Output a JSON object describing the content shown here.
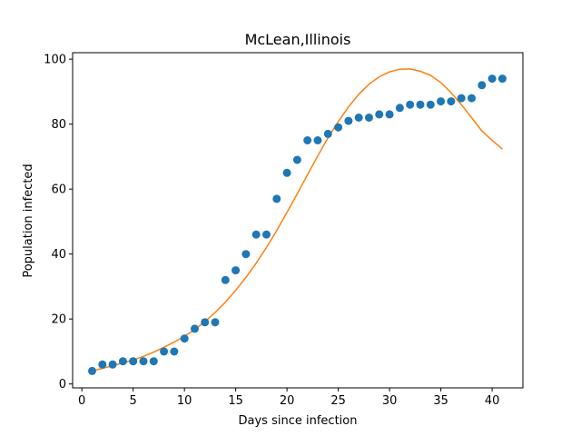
{
  "chart_data": {
    "type": "scatter",
    "title": "McLean,Illinois",
    "xlabel": "Days since infection",
    "ylabel": "Population infected",
    "xlim": [
      -0.9,
      43
    ],
    "ylim": [
      -1.2,
      102
    ],
    "xticks": [
      0,
      5,
      10,
      15,
      20,
      25,
      30,
      35,
      40
    ],
    "yticks": [
      0,
      20,
      40,
      60,
      80,
      100
    ],
    "grid": false,
    "legend": "none",
    "series": [
      {
        "kind": "scatter",
        "color": "#1f77b4",
        "x": [
          1,
          2,
          3,
          4,
          5,
          6,
          7,
          8,
          9,
          10,
          11,
          12,
          13,
          14,
          15,
          16,
          17,
          18,
          19,
          20,
          21,
          22,
          23,
          24,
          25,
          26,
          27,
          28,
          29,
          30,
          31,
          32,
          33,
          34,
          35,
          36,
          37,
          38,
          39,
          40,
          41
        ],
        "y": [
          4,
          6,
          6,
          7,
          7,
          7,
          7,
          10,
          10,
          14,
          17,
          19,
          19,
          32,
          35,
          40,
          46,
          46,
          57,
          65,
          69,
          75,
          75,
          77,
          79,
          81,
          82,
          82,
          83,
          83,
          85,
          86,
          86,
          86,
          87,
          87,
          88,
          88,
          92,
          94,
          94
        ]
      },
      {
        "kind": "line",
        "color": "#ff7f0e",
        "x": [
          1,
          2,
          3,
          4,
          5,
          6,
          7,
          8,
          9,
          10,
          11,
          12,
          13,
          14,
          15,
          16,
          17,
          18,
          19,
          20,
          21,
          22,
          23,
          24,
          25,
          26,
          27,
          28,
          29,
          30,
          31,
          32,
          33,
          34,
          35,
          36,
          37,
          38,
          39,
          40,
          41
        ],
        "y": [
          4,
          4.8,
          5.6,
          6.5,
          7.4,
          8.5,
          9.8,
          11.3,
          12.9,
          14.7,
          16.7,
          19.2,
          22,
          25.2,
          28.8,
          32.8,
          37.2,
          42,
          47.2,
          52.8,
          58.5,
          64.4,
          70.2,
          75.8,
          80.8,
          85.3,
          89.2,
          92.3,
          94.6,
          96.1,
          96.9,
          97,
          96.3,
          95,
          92.8,
          89.7,
          86,
          82,
          77.9,
          75,
          72.3
        ]
      }
    ]
  }
}
